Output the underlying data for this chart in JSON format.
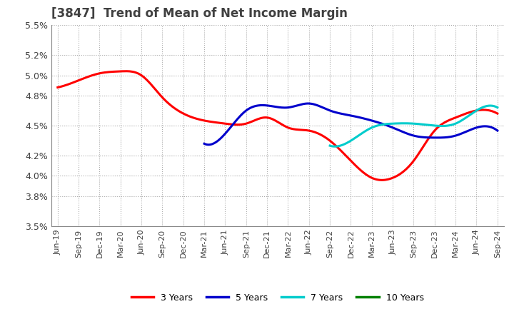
{
  "title": "[3847]  Trend of Mean of Net Income Margin",
  "title_color": "#404040",
  "background_color": "#ffffff",
  "grid_color": "#aaaaaa",
  "ylim": [
    0.035,
    0.055
  ],
  "yticks": [
    0.035,
    0.038,
    0.04,
    0.042,
    0.045,
    0.048,
    0.05,
    0.052,
    0.055
  ],
  "ytick_labels": [
    "3.5%",
    "3.8%",
    "4.0%",
    "4.2%",
    "4.5%",
    "4.8%",
    "5.0%",
    "5.2%",
    "5.5%"
  ],
  "x_labels": [
    "Jun-19",
    "Sep-19",
    "Dec-19",
    "Mar-20",
    "Jun-20",
    "Sep-20",
    "Dec-20",
    "Mar-21",
    "Jun-21",
    "Sep-21",
    "Dec-21",
    "Mar-22",
    "Jun-22",
    "Sep-22",
    "Dec-22",
    "Mar-23",
    "Jun-23",
    "Sep-23",
    "Dec-23",
    "Mar-24",
    "Jun-24",
    "Sep-24"
  ],
  "series": {
    "3 Years": {
      "color": "#ff0000",
      "values": [
        0.0488,
        0.0495,
        0.0502,
        0.0504,
        0.05,
        0.0478,
        0.0462,
        0.0455,
        0.0452,
        0.0452,
        0.0458,
        0.0448,
        0.0445,
        0.0435,
        0.0415,
        0.0398,
        0.0398,
        0.0415,
        0.0445,
        0.0458,
        0.0465,
        0.0462
      ]
    },
    "5 Years": {
      "color": "#0000cc",
      "values": [
        null,
        null,
        null,
        null,
        null,
        null,
        null,
        0.0432,
        0.0442,
        0.0465,
        0.047,
        0.0468,
        0.0472,
        0.0465,
        0.046,
        0.0455,
        0.0448,
        0.044,
        0.0438,
        0.044,
        0.0448,
        0.0445
      ]
    },
    "7 Years": {
      "color": "#00cccc",
      "values": [
        null,
        null,
        null,
        null,
        null,
        null,
        null,
        null,
        null,
        null,
        null,
        null,
        null,
        0.043,
        0.0435,
        0.0448,
        0.0452,
        0.0452,
        0.045,
        0.0452,
        0.0465,
        0.0468
      ]
    },
    "10 Years": {
      "color": "#008000",
      "values": [
        null,
        null,
        null,
        null,
        null,
        null,
        null,
        null,
        null,
        null,
        null,
        null,
        null,
        null,
        null,
        null,
        null,
        null,
        null,
        null,
        null,
        null
      ]
    }
  }
}
